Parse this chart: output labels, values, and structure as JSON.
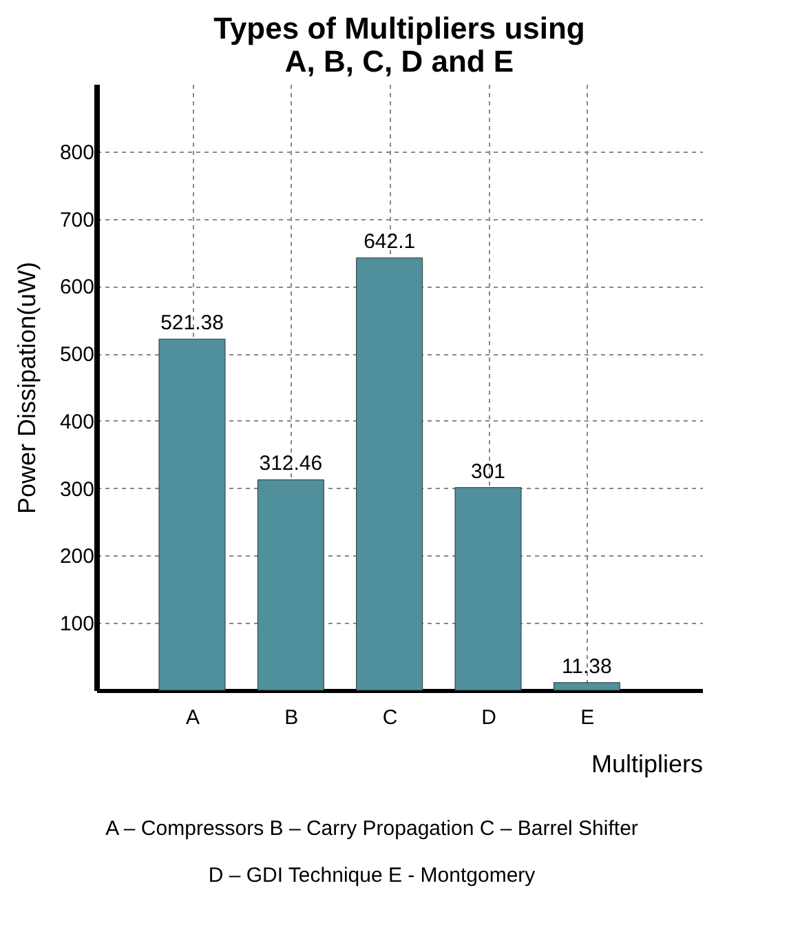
{
  "chart_data": {
    "type": "bar",
    "title": "Types of Multipliers using\nA, B, C, D and E",
    "xlabel": "Multipliers",
    "ylabel": "Power Dissipation(uW)",
    "categories": [
      "A",
      "B",
      "C",
      "D",
      "E"
    ],
    "series": [
      {
        "color": "#4f909c",
        "values": [
          521.38,
          312.46,
          642.1,
          301,
          11.38
        ]
      }
    ],
    "ylim": [
      0,
      900
    ],
    "yticks": [
      100,
      200,
      300,
      400,
      500,
      600,
      700,
      800
    ],
    "grid": true,
    "data_labels": true,
    "annotations": [
      "A – Compressors  B – Carry Propagation  C – Barrel Shifter",
      "D – GDI Technique  E - Montgomery"
    ]
  }
}
